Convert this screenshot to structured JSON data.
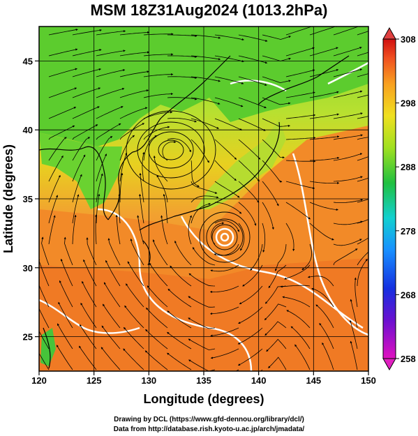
{
  "title": "MSM 18Z31Aug2024 (1013.2hPa)",
  "xaxis": {
    "label": "Longitude (degrees)",
    "ticks": [
      "120",
      "125",
      "130",
      "135",
      "140",
      "145",
      "150"
    ]
  },
  "yaxis": {
    "label": "Latitude  (degrees)",
    "ticks": [
      "25",
      "30",
      "35",
      "40",
      "45"
    ]
  },
  "colorbar": {
    "ticks": [
      "308",
      "298",
      "288",
      "278",
      "268",
      "258"
    ],
    "min": 258,
    "max": 308
  },
  "credits": {
    "line1": "Drawing by DCL (https://www.gfd-dennou.org/library/dcl/)",
    "line2": "Data from http://database.rish.kyoto-u.ac.jp/arch/jmadata/"
  },
  "colors": {
    "warm": "#f29a2e",
    "hot": "#f07020",
    "mild": "#e8d020",
    "cool": "#8fdc2a",
    "green": "#3cc63c"
  },
  "chart_data": {
    "type": "heatmap",
    "xlim": [
      120,
      150
    ],
    "ylim": [
      22.5,
      47.5
    ],
    "colorbar_range": [
      258,
      308
    ],
    "features": [
      "temperature shading",
      "streamlines",
      "white contours",
      "coastlines",
      "typhoon vortex near 137E 33N"
    ]
  }
}
